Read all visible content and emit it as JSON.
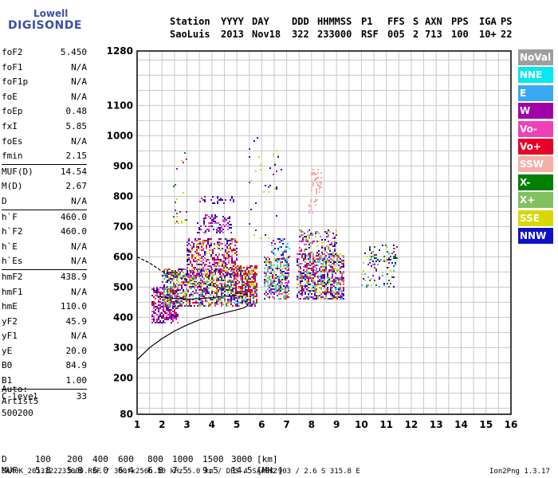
{
  "logo": {
    "line1": "Lowell",
    "line2": "DIGISONDE"
  },
  "header": {
    "row1": [
      "Station",
      "YYYY",
      "DAY",
      "DDD",
      "HHMMSS",
      "P1",
      "FFS",
      "S",
      "AXN",
      "PPS",
      "IGA",
      "PS"
    ],
    "row2": [
      "SaoLuis",
      "2013",
      "Nov18",
      "322",
      "233000",
      "RSF",
      "005",
      "2",
      "713",
      "100",
      "10+",
      "22"
    ]
  },
  "params": [
    {
      "key": "foF2",
      "value": "5.450"
    },
    {
      "key": "foF1",
      "value": "N/A"
    },
    {
      "key": "foF1p",
      "value": "N/A"
    },
    {
      "key": "foE",
      "value": "N/A"
    },
    {
      "key": "foEp",
      "value": "0.48"
    },
    {
      "key": "fxI",
      "value": "5.85"
    },
    {
      "key": "foEs",
      "value": "N/A"
    },
    {
      "key": "fmin",
      "value": "2.15"
    },
    {
      "key": "MUF(D)",
      "value": "14.54",
      "sep": true
    },
    {
      "key": "M(D)",
      "value": "2.67"
    },
    {
      "key": "D",
      "value": "N/A"
    },
    {
      "key": "h`F",
      "value": "460.0",
      "sep": true
    },
    {
      "key": "h`F2",
      "value": "460.0"
    },
    {
      "key": "h`E",
      "value": "N/A"
    },
    {
      "key": "h`Es",
      "value": "N/A"
    },
    {
      "key": "hmF2",
      "value": "438.9",
      "sep": true
    },
    {
      "key": "hmF1",
      "value": "N/A"
    },
    {
      "key": "hmE",
      "value": "110.0"
    },
    {
      "key": "yF2",
      "value": "45.9"
    },
    {
      "key": "yF1",
      "value": "N/A"
    },
    {
      "key": "yE",
      "value": "20.0"
    },
    {
      "key": "B0",
      "value": "84.9"
    },
    {
      "key": "B1",
      "value": "1.00"
    },
    {
      "key": "C-level",
      "value": "33",
      "sep": true
    }
  ],
  "notes": {
    "auto": "Auto:",
    "artist": "Artist5",
    "code": "500200"
  },
  "footer": {
    "d_label": "D",
    "d_values": [
      "100",
      "200",
      "400",
      "600",
      "800",
      "1000",
      "1500",
      "3000"
    ],
    "d_unit": "[km]",
    "muf_label": "MUF",
    "muf_values": [
      "5.8",
      "5.8",
      "6.0",
      "6.4",
      "6.8",
      "7.5",
      "9.5",
      "14.5"
    ],
    "muf_unit": "[MHz]",
    "file_info": "SAA0K_2013322233000.RSF / 300fx256h 50 kHz 5.0 km / DPS-4 SAA0K 903 / 2.6 S 315.8 E",
    "version": "Ion2Png 1.3.17"
  },
  "legend": [
    {
      "label": "NoVal",
      "color": "#9e9e9e"
    },
    {
      "label": "NNE",
      "color": "#00e8f0"
    },
    {
      "label": "E",
      "color": "#3aa8f0"
    },
    {
      "label": "W",
      "color": "#a000a8"
    },
    {
      "label": "Vo-",
      "color": "#f040b8"
    },
    {
      "label": "Vo+",
      "color": "#e80028"
    },
    {
      "label": "SSW",
      "color": "#f4b0a8"
    },
    {
      "label": "X-",
      "color": "#008000"
    },
    {
      "label": "X+",
      "color": "#80c060"
    },
    {
      "label": "SSE",
      "color": "#d8d800"
    },
    {
      "label": "NNW",
      "color": "#1010c8"
    }
  ],
  "chart_data": {
    "type": "scatter",
    "xlim": [
      1,
      16
    ],
    "ylim": [
      80,
      1280
    ],
    "x_ticks": [
      "1",
      "2",
      "3",
      "4",
      "5",
      "6",
      "7",
      "8",
      "9",
      "10",
      "11",
      "12",
      "13",
      "14",
      "15",
      "16"
    ],
    "y_ticks": [
      "80",
      "200",
      "300",
      "400",
      "500",
      "600",
      "700",
      "800",
      "900",
      "1000",
      "1100",
      "1280"
    ],
    "grid": true,
    "clusters": [
      {
        "x": [
          1.6,
          2.6
        ],
        "y": [
          380,
          500
        ],
        "colors": [
          "#a000a8",
          "#f040b8",
          "#e80028",
          "#1010c8"
        ],
        "density": 0.55
      },
      {
        "x": [
          2.0,
          5.8
        ],
        "y": [
          440,
          560
        ],
        "colors": [
          "#d8d800",
          "#a000a8",
          "#1010c8",
          "#e80028",
          "#008000",
          "#80c060",
          "#f040b8",
          "#3aa8f0"
        ],
        "density": 0.55
      },
      {
        "x": [
          3.0,
          5.0
        ],
        "y": [
          540,
          660
        ],
        "colors": [
          "#a000a8",
          "#f040b8",
          "#1010c8",
          "#e80028",
          "#d8d800"
        ],
        "density": 0.45
      },
      {
        "x": [
          3.4,
          4.8
        ],
        "y": [
          680,
          740
        ],
        "colors": [
          "#a000a8",
          "#1010c8",
          "#f040b8"
        ],
        "density": 0.3
      },
      {
        "x": [
          3.5,
          4.9
        ],
        "y": [
          775,
          800
        ],
        "colors": [
          "#a000a8",
          "#1010c8"
        ],
        "density": 0.2
      },
      {
        "x": [
          4.9,
          5.8
        ],
        "y": [
          470,
          570
        ],
        "colors": [
          "#d8d800",
          "#e80028",
          "#a000a8"
        ],
        "density": 0.55
      },
      {
        "x": [
          6.1,
          7.1
        ],
        "y": [
          460,
          600
        ],
        "colors": [
          "#a000a8",
          "#f040b8",
          "#d8d800",
          "#00e8f0",
          "#1010c8",
          "#80c060"
        ],
        "density": 0.55
      },
      {
        "x": [
          6.4,
          7.1
        ],
        "y": [
          600,
          660
        ],
        "colors": [
          "#1010c8",
          "#00e8f0",
          "#a000a8"
        ],
        "density": 0.3
      },
      {
        "x": [
          7.4,
          9.3
        ],
        "y": [
          460,
          610
        ],
        "colors": [
          "#1010c8",
          "#a000a8",
          "#d8d800",
          "#f040b8",
          "#00e8f0",
          "#80c060",
          "#e80028"
        ],
        "density": 0.6
      },
      {
        "x": [
          7.5,
          9.0
        ],
        "y": [
          610,
          690
        ],
        "colors": [
          "#a000a8",
          "#d8d800",
          "#80c060",
          "#f040b8",
          "#1010c8"
        ],
        "density": 0.35
      },
      {
        "x": [
          10.0,
          11.4
        ],
        "y": [
          500,
          640
        ],
        "colors": [
          "#008000",
          "#3aa8f0",
          "#a000a8",
          "#d8d800",
          "#1010c8"
        ],
        "density": 0.18
      },
      {
        "x": [
          8.0,
          8.4
        ],
        "y": [
          810,
          890
        ],
        "colors": [
          "#f4b0a8"
        ],
        "density": 0.25
      },
      {
        "x": [
          7.9,
          8.2
        ],
        "y": [
          730,
          790
        ],
        "colors": [
          "#f4b0a8"
        ],
        "density": 0.2
      },
      {
        "x": [
          2.4,
          3.0
        ],
        "y": [
          700,
          950
        ],
        "colors": [
          "#a000a8",
          "#008000",
          "#d8d800"
        ],
        "density": 0.04
      },
      {
        "x": [
          5.5,
          6.8
        ],
        "y": [
          640,
          1000
        ],
        "colors": [
          "#a000a8",
          "#d8d800",
          "#1010c8"
        ],
        "density": 0.02
      }
    ],
    "curves": [
      {
        "name": "profile",
        "points": [
          [
            1,
            260
          ],
          [
            1.5,
            300
          ],
          [
            2.0,
            330
          ],
          [
            2.5,
            355
          ],
          [
            3.0,
            375
          ],
          [
            3.5,
            392
          ],
          [
            4.0,
            405
          ],
          [
            4.5,
            415
          ],
          [
            5.0,
            425
          ],
          [
            5.3,
            432
          ],
          [
            5.45,
            440
          ]
        ]
      },
      {
        "name": "trace",
        "points": [
          [
            1,
            600
          ],
          [
            1.5,
            580
          ],
          [
            2.0,
            552
          ],
          [
            2.5,
            535
          ],
          [
            3.0,
            525
          ],
          [
            3.5,
            515
          ],
          [
            4.0,
            505
          ],
          [
            4.5,
            495
          ],
          [
            5.0,
            480
          ],
          [
            5.5,
            475
          ]
        ]
      },
      {
        "name": "trace2",
        "points": [
          [
            1.8,
            470
          ],
          [
            2.2,
            465
          ],
          [
            2.6,
            462
          ],
          [
            3.0,
            460
          ],
          [
            3.5,
            462
          ],
          [
            4.0,
            465
          ],
          [
            4.5,
            470
          ],
          [
            5.0,
            472
          ]
        ]
      }
    ]
  }
}
